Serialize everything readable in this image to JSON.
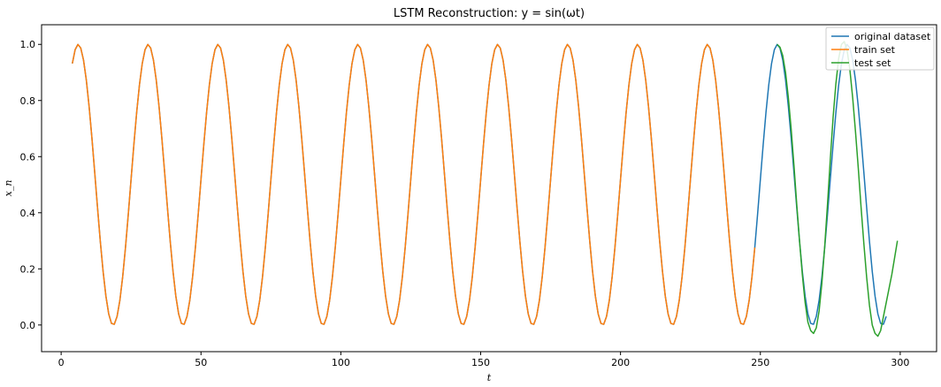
{
  "chart_data": {
    "type": "line",
    "title": "LSTM Reconstruction: y = sin(ωt)",
    "xlabel": "t",
    "ylabel": "x_n",
    "xlim": [
      -7,
      313
    ],
    "ylim": [
      -0.095,
      1.07
    ],
    "xticks": [
      0,
      50,
      100,
      150,
      200,
      250,
      300
    ],
    "yticks": [
      0.0,
      0.2,
      0.4,
      0.6,
      0.8,
      1.0
    ],
    "xtick_labels": [
      "0",
      "50",
      "100",
      "150",
      "200",
      "250",
      "300"
    ],
    "ytick_labels": [
      "0.0",
      "0.2",
      "0.4",
      "0.6",
      "0.8",
      "1.0"
    ],
    "grid": false,
    "legend_position": "top-right",
    "series": [
      {
        "name": "original dataset",
        "color": "#1f77b4",
        "model": "0.5 + 0.5*cos(2π(t - 6.1)/25)",
        "x_range": [
          4,
          295
        ],
        "sample_points": [
          [
            4,
            0.92
          ],
          [
            6,
            1.0
          ],
          [
            18.6,
            0.0
          ],
          [
            31,
            1.0
          ],
          [
            43.6,
            0.0
          ],
          [
            56,
            1.0
          ],
          [
            68.6,
            0.0
          ],
          [
            81,
            1.0
          ],
          [
            93.6,
            0.0
          ],
          [
            106,
            1.0
          ],
          [
            118.6,
            0.0
          ],
          [
            131,
            1.0
          ],
          [
            143.6,
            0.0
          ],
          [
            156,
            1.0
          ],
          [
            168.6,
            0.0
          ],
          [
            181,
            1.0
          ],
          [
            193.6,
            0.0
          ],
          [
            206,
            1.0
          ],
          [
            218.6,
            0.0
          ],
          [
            231,
            1.0
          ],
          [
            243.6,
            0.0
          ],
          [
            256,
            1.0
          ],
          [
            268.6,
            0.0
          ],
          [
            281,
            1.0
          ],
          [
            293.6,
            0.0
          ],
          [
            295,
            0.02
          ]
        ]
      },
      {
        "name": "train set",
        "color": "#ff7f0e",
        "model": "0.5 + 0.5*cos(2π(t - 6.1)/25)",
        "x_range": [
          4,
          248
        ],
        "sample_points": [
          [
            4,
            0.92
          ],
          [
            6,
            1.0
          ],
          [
            18.6,
            0.0
          ],
          [
            31,
            1.0
          ],
          [
            43.6,
            0.0
          ],
          [
            56,
            1.0
          ],
          [
            68.6,
            0.0
          ],
          [
            81,
            1.0
          ],
          [
            93.6,
            0.0
          ],
          [
            106,
            1.0
          ],
          [
            118.6,
            0.0
          ],
          [
            131,
            1.0
          ],
          [
            143.6,
            0.0
          ],
          [
            156,
            1.0
          ],
          [
            168.6,
            0.0
          ],
          [
            181,
            1.0
          ],
          [
            193.6,
            0.0
          ],
          [
            206,
            1.0
          ],
          [
            218.6,
            0.0
          ],
          [
            231,
            1.0
          ],
          [
            243.6,
            0.0
          ],
          [
            248,
            0.25
          ]
        ]
      },
      {
        "name": "test set",
        "color": "#2ca02c",
        "x_range": [
          256,
          299
        ],
        "sample_points": [
          [
            256,
            1.0
          ],
          [
            257,
            0.99
          ],
          [
            258,
            0.96
          ],
          [
            259,
            0.9
          ],
          [
            260,
            0.81
          ],
          [
            261,
            0.7
          ],
          [
            262,
            0.57
          ],
          [
            263,
            0.43
          ],
          [
            264,
            0.3
          ],
          [
            265,
            0.18
          ],
          [
            266,
            0.08
          ],
          [
            267,
            0.01
          ],
          [
            268,
            -0.02
          ],
          [
            269,
            -0.03
          ],
          [
            270,
            -0.01
          ],
          [
            271,
            0.05
          ],
          [
            272,
            0.15
          ],
          [
            273,
            0.28
          ],
          [
            274,
            0.43
          ],
          [
            275,
            0.59
          ],
          [
            276,
            0.74
          ],
          [
            277,
            0.86
          ],
          [
            278,
            0.95
          ],
          [
            279,
            1.0
          ],
          [
            280,
            1.01
          ],
          [
            281,
            0.98
          ],
          [
            282,
            0.91
          ],
          [
            283,
            0.81
          ],
          [
            284,
            0.69
          ],
          [
            285,
            0.56
          ],
          [
            286,
            0.42
          ],
          [
            287,
            0.29
          ],
          [
            288,
            0.17
          ],
          [
            289,
            0.07
          ],
          [
            290,
            0.0
          ],
          [
            291,
            -0.03
          ],
          [
            292,
            -0.04
          ],
          [
            293,
            -0.02
          ],
          [
            294,
            0.03
          ],
          [
            295,
            0.08
          ],
          [
            296,
            0.13
          ],
          [
            297,
            0.18
          ],
          [
            298,
            0.24
          ],
          [
            299,
            0.3
          ]
        ]
      }
    ]
  }
}
